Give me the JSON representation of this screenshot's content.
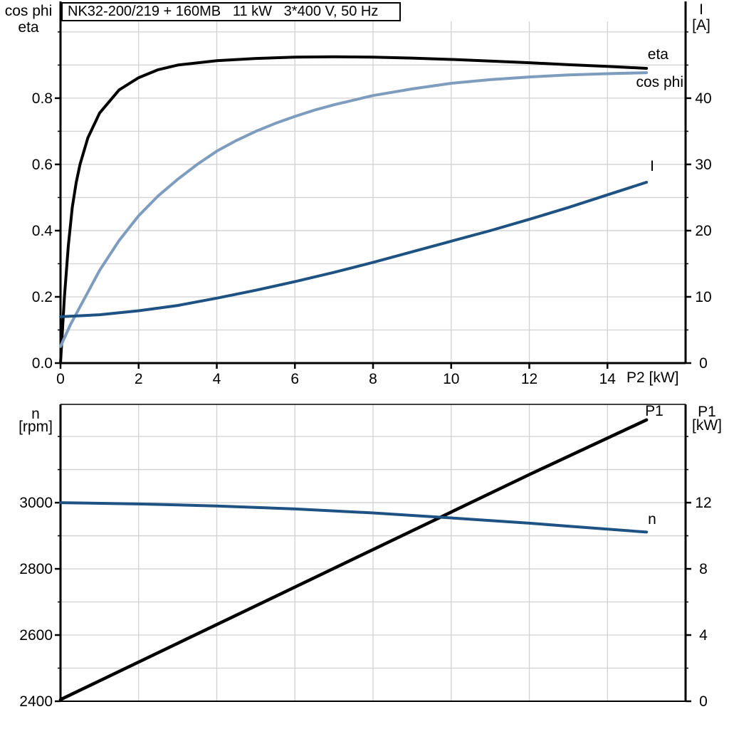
{
  "title_box": {
    "text": "NK32-200/219 + 160MB   11 kW   3*400 V, 50 Hz"
  },
  "colors": {
    "black": "#000000",
    "light_blue": "#7d9cbe",
    "dark_blue": "#1d5283",
    "grid": "#d2d2d2",
    "background": "#ffffff"
  },
  "chart_data": [
    {
      "type": "line",
      "title": "Motor electrical data vs shaft power",
      "x_axis": {
        "label": "P2 [kW]",
        "range": [
          0,
          16
        ],
        "tick_values": [
          0,
          2,
          4,
          6,
          8,
          10,
          12,
          14
        ],
        "tick_labels": [
          "0",
          "2",
          "4",
          "6",
          "8",
          "10",
          "12",
          "14"
        ],
        "grid_values": [
          2,
          4,
          6,
          8,
          10,
          12,
          14
        ]
      },
      "left_axis": {
        "label_lines": [
          "cos phi",
          "eta"
        ],
        "range": [
          0,
          1.032
        ],
        "tick_values": [
          0,
          0.2,
          0.4,
          0.6,
          0.8
        ],
        "tick_labels": [
          "0.0",
          "0.2",
          "0.4",
          "0.6",
          "0.8"
        ],
        "minor_ticks": [
          0.1,
          0.3,
          0.5,
          0.7,
          0.9,
          1.0
        ],
        "grid_values": [
          0.1,
          0.2,
          0.3,
          0.4,
          0.5,
          0.6,
          0.7,
          0.8,
          0.9,
          1.0
        ]
      },
      "right_axis": {
        "label_lines": [
          "I",
          "[A]"
        ],
        "range": [
          0,
          51.6
        ],
        "tick_values": [
          0,
          10,
          20,
          30,
          40
        ],
        "tick_labels": [
          "0",
          "10",
          "20",
          "30",
          "40"
        ],
        "minor_ticks": [
          5,
          15,
          25,
          35,
          45,
          50
        ]
      },
      "series": [
        {
          "name": "eta",
          "label": "eta",
          "axis": "left",
          "color_key": "black",
          "width": 4,
          "points": [
            [
              0,
              0
            ],
            [
              0.1,
              0.2
            ],
            [
              0.2,
              0.355
            ],
            [
              0.3,
              0.47
            ],
            [
              0.4,
              0.545
            ],
            [
              0.5,
              0.6
            ],
            [
              0.7,
              0.68
            ],
            [
              1,
              0.755
            ],
            [
              1.5,
              0.825
            ],
            [
              2,
              0.862
            ],
            [
              2.5,
              0.886
            ],
            [
              3,
              0.9
            ],
            [
              4,
              0.913
            ],
            [
              5,
              0.92
            ],
            [
              6,
              0.924
            ],
            [
              7,
              0.925
            ],
            [
              8,
              0.924
            ],
            [
              9,
              0.921
            ],
            [
              10,
              0.917
            ],
            [
              11,
              0.912
            ],
            [
              12,
              0.907
            ],
            [
              13,
              0.901
            ],
            [
              14,
              0.896
            ],
            [
              15,
              0.89
            ]
          ]
        },
        {
          "name": "cos-phi",
          "label": "cos phi",
          "axis": "left",
          "color_key": "light_blue",
          "width": 4,
          "points": [
            [
              0,
              0.05
            ],
            [
              0.25,
              0.115
            ],
            [
              0.5,
              0.17
            ],
            [
              1,
              0.28
            ],
            [
              1.5,
              0.37
            ],
            [
              2,
              0.445
            ],
            [
              2.5,
              0.505
            ],
            [
              3,
              0.555
            ],
            [
              3.5,
              0.6
            ],
            [
              4,
              0.64
            ],
            [
              4.5,
              0.672
            ],
            [
              5,
              0.7
            ],
            [
              5.5,
              0.724
            ],
            [
              6,
              0.745
            ],
            [
              6.5,
              0.764
            ],
            [
              7,
              0.78
            ],
            [
              8,
              0.808
            ],
            [
              9,
              0.828
            ],
            [
              10,
              0.845
            ],
            [
              11,
              0.856
            ],
            [
              12,
              0.864
            ],
            [
              13,
              0.87
            ],
            [
              14,
              0.874
            ],
            [
              15,
              0.877
            ]
          ]
        },
        {
          "name": "I",
          "label": "I",
          "axis": "right",
          "color_key": "dark_blue",
          "width": 4,
          "points": [
            [
              0,
              7
            ],
            [
              1,
              7.3
            ],
            [
              2,
              7.9
            ],
            [
              3,
              8.7
            ],
            [
              4,
              9.8
            ],
            [
              5,
              11
            ],
            [
              6,
              12.3
            ],
            [
              7,
              13.7
            ],
            [
              8,
              15.2
            ],
            [
              9,
              16.8
            ],
            [
              10,
              18.4
            ],
            [
              11,
              20
            ],
            [
              12,
              21.7
            ],
            [
              13,
              23.5
            ],
            [
              14,
              25.4
            ],
            [
              15,
              27.3
            ]
          ]
        }
      ]
    },
    {
      "type": "line",
      "title": "Speed and input power vs shaft power",
      "x_axis": {
        "label": "",
        "range": [
          0,
          16
        ],
        "tick_values": [],
        "tick_labels": [],
        "grid_values": [
          2,
          4,
          6,
          8,
          10,
          12,
          14
        ]
      },
      "left_axis": {
        "label_lines": [
          "n",
          "[rpm]"
        ],
        "range": [
          2400,
          3297
        ],
        "tick_values": [
          2400,
          2600,
          2800,
          3000
        ],
        "tick_labels": [
          "2400",
          "2600",
          "2800",
          "3000"
        ],
        "minor_ticks": [
          2500,
          2700,
          2900,
          3100,
          3200
        ],
        "grid_values": [
          2500,
          2600,
          2700,
          2800,
          2900,
          3000,
          3100,
          3200
        ]
      },
      "right_axis": {
        "label_lines": [
          "P1",
          "[kW]"
        ],
        "range": [
          0,
          17.94
        ],
        "tick_values": [
          0,
          4,
          8,
          12
        ],
        "tick_labels": [
          "0",
          "4",
          "8",
          "12"
        ],
        "minor_ticks": [
          2,
          6,
          10,
          14,
          16
        ]
      },
      "series": [
        {
          "name": "P1",
          "label": "P1",
          "axis": "right",
          "color_key": "black",
          "width": 4.5,
          "points": [
            [
              0,
              0.1
            ],
            [
              3,
              3.5
            ],
            [
              6,
              6.9
            ],
            [
              9,
              10.3
            ],
            [
              12,
              13.7
            ],
            [
              15,
              17.0
            ]
          ]
        },
        {
          "name": "n",
          "label": "n",
          "axis": "left",
          "color_key": "dark_blue",
          "width": 4,
          "points": [
            [
              0,
              3000
            ],
            [
              2,
              2996
            ],
            [
              4,
              2990
            ],
            [
              6,
              2981
            ],
            [
              8,
              2969
            ],
            [
              10,
              2954
            ],
            [
              12,
              2938
            ],
            [
              13,
              2929
            ],
            [
              14,
              2920
            ],
            [
              15,
              2911
            ]
          ]
        }
      ]
    }
  ]
}
